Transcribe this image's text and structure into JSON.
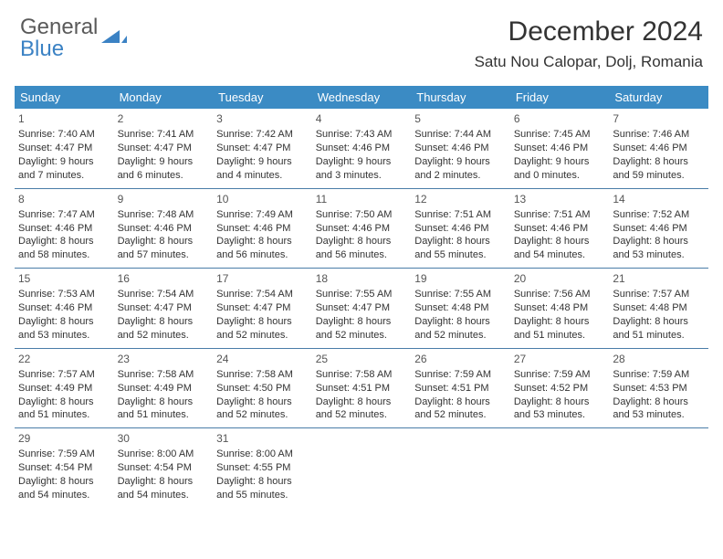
{
  "logo": {
    "word1": "General",
    "word2": "Blue"
  },
  "title": "December 2024",
  "location": "Satu Nou Calopar, Dolj, Romania",
  "colors": {
    "header_bg": "#3b8bc4",
    "header_text": "#ffffff",
    "divider": "#4a7da8",
    "body_text": "#333333",
    "logo_gray": "#5a5a5a",
    "logo_blue": "#3b82c4"
  },
  "day_headers": [
    "Sunday",
    "Monday",
    "Tuesday",
    "Wednesday",
    "Thursday",
    "Friday",
    "Saturday"
  ],
  "weeks": [
    [
      {
        "n": "1",
        "sr": "Sunrise: 7:40 AM",
        "ss": "Sunset: 4:47 PM",
        "d1": "Daylight: 9 hours",
        "d2": "and 7 minutes."
      },
      {
        "n": "2",
        "sr": "Sunrise: 7:41 AM",
        "ss": "Sunset: 4:47 PM",
        "d1": "Daylight: 9 hours",
        "d2": "and 6 minutes."
      },
      {
        "n": "3",
        "sr": "Sunrise: 7:42 AM",
        "ss": "Sunset: 4:47 PM",
        "d1": "Daylight: 9 hours",
        "d2": "and 4 minutes."
      },
      {
        "n": "4",
        "sr": "Sunrise: 7:43 AM",
        "ss": "Sunset: 4:46 PM",
        "d1": "Daylight: 9 hours",
        "d2": "and 3 minutes."
      },
      {
        "n": "5",
        "sr": "Sunrise: 7:44 AM",
        "ss": "Sunset: 4:46 PM",
        "d1": "Daylight: 9 hours",
        "d2": "and 2 minutes."
      },
      {
        "n": "6",
        "sr": "Sunrise: 7:45 AM",
        "ss": "Sunset: 4:46 PM",
        "d1": "Daylight: 9 hours",
        "d2": "and 0 minutes."
      },
      {
        "n": "7",
        "sr": "Sunrise: 7:46 AM",
        "ss": "Sunset: 4:46 PM",
        "d1": "Daylight: 8 hours",
        "d2": "and 59 minutes."
      }
    ],
    [
      {
        "n": "8",
        "sr": "Sunrise: 7:47 AM",
        "ss": "Sunset: 4:46 PM",
        "d1": "Daylight: 8 hours",
        "d2": "and 58 minutes."
      },
      {
        "n": "9",
        "sr": "Sunrise: 7:48 AM",
        "ss": "Sunset: 4:46 PM",
        "d1": "Daylight: 8 hours",
        "d2": "and 57 minutes."
      },
      {
        "n": "10",
        "sr": "Sunrise: 7:49 AM",
        "ss": "Sunset: 4:46 PM",
        "d1": "Daylight: 8 hours",
        "d2": "and 56 minutes."
      },
      {
        "n": "11",
        "sr": "Sunrise: 7:50 AM",
        "ss": "Sunset: 4:46 PM",
        "d1": "Daylight: 8 hours",
        "d2": "and 56 minutes."
      },
      {
        "n": "12",
        "sr": "Sunrise: 7:51 AM",
        "ss": "Sunset: 4:46 PM",
        "d1": "Daylight: 8 hours",
        "d2": "and 55 minutes."
      },
      {
        "n": "13",
        "sr": "Sunrise: 7:51 AM",
        "ss": "Sunset: 4:46 PM",
        "d1": "Daylight: 8 hours",
        "d2": "and 54 minutes."
      },
      {
        "n": "14",
        "sr": "Sunrise: 7:52 AM",
        "ss": "Sunset: 4:46 PM",
        "d1": "Daylight: 8 hours",
        "d2": "and 53 minutes."
      }
    ],
    [
      {
        "n": "15",
        "sr": "Sunrise: 7:53 AM",
        "ss": "Sunset: 4:46 PM",
        "d1": "Daylight: 8 hours",
        "d2": "and 53 minutes."
      },
      {
        "n": "16",
        "sr": "Sunrise: 7:54 AM",
        "ss": "Sunset: 4:47 PM",
        "d1": "Daylight: 8 hours",
        "d2": "and 52 minutes."
      },
      {
        "n": "17",
        "sr": "Sunrise: 7:54 AM",
        "ss": "Sunset: 4:47 PM",
        "d1": "Daylight: 8 hours",
        "d2": "and 52 minutes."
      },
      {
        "n": "18",
        "sr": "Sunrise: 7:55 AM",
        "ss": "Sunset: 4:47 PM",
        "d1": "Daylight: 8 hours",
        "d2": "and 52 minutes."
      },
      {
        "n": "19",
        "sr": "Sunrise: 7:55 AM",
        "ss": "Sunset: 4:48 PM",
        "d1": "Daylight: 8 hours",
        "d2": "and 52 minutes."
      },
      {
        "n": "20",
        "sr": "Sunrise: 7:56 AM",
        "ss": "Sunset: 4:48 PM",
        "d1": "Daylight: 8 hours",
        "d2": "and 51 minutes."
      },
      {
        "n": "21",
        "sr": "Sunrise: 7:57 AM",
        "ss": "Sunset: 4:48 PM",
        "d1": "Daylight: 8 hours",
        "d2": "and 51 minutes."
      }
    ],
    [
      {
        "n": "22",
        "sr": "Sunrise: 7:57 AM",
        "ss": "Sunset: 4:49 PM",
        "d1": "Daylight: 8 hours",
        "d2": "and 51 minutes."
      },
      {
        "n": "23",
        "sr": "Sunrise: 7:58 AM",
        "ss": "Sunset: 4:49 PM",
        "d1": "Daylight: 8 hours",
        "d2": "and 51 minutes."
      },
      {
        "n": "24",
        "sr": "Sunrise: 7:58 AM",
        "ss": "Sunset: 4:50 PM",
        "d1": "Daylight: 8 hours",
        "d2": "and 52 minutes."
      },
      {
        "n": "25",
        "sr": "Sunrise: 7:58 AM",
        "ss": "Sunset: 4:51 PM",
        "d1": "Daylight: 8 hours",
        "d2": "and 52 minutes."
      },
      {
        "n": "26",
        "sr": "Sunrise: 7:59 AM",
        "ss": "Sunset: 4:51 PM",
        "d1": "Daylight: 8 hours",
        "d2": "and 52 minutes."
      },
      {
        "n": "27",
        "sr": "Sunrise: 7:59 AM",
        "ss": "Sunset: 4:52 PM",
        "d1": "Daylight: 8 hours",
        "d2": "and 53 minutes."
      },
      {
        "n": "28",
        "sr": "Sunrise: 7:59 AM",
        "ss": "Sunset: 4:53 PM",
        "d1": "Daylight: 8 hours",
        "d2": "and 53 minutes."
      }
    ],
    [
      {
        "n": "29",
        "sr": "Sunrise: 7:59 AM",
        "ss": "Sunset: 4:54 PM",
        "d1": "Daylight: 8 hours",
        "d2": "and 54 minutes."
      },
      {
        "n": "30",
        "sr": "Sunrise: 8:00 AM",
        "ss": "Sunset: 4:54 PM",
        "d1": "Daylight: 8 hours",
        "d2": "and 54 minutes."
      },
      {
        "n": "31",
        "sr": "Sunrise: 8:00 AM",
        "ss": "Sunset: 4:55 PM",
        "d1": "Daylight: 8 hours",
        "d2": "and 55 minutes."
      },
      null,
      null,
      null,
      null
    ]
  ]
}
